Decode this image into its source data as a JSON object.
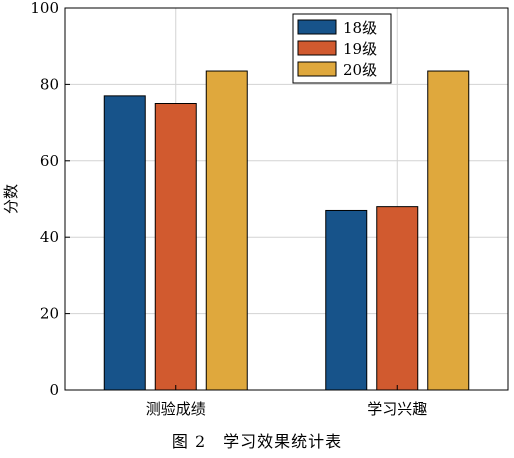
{
  "caption": "图 2　学习效果统计表",
  "chart_data": {
    "type": "bar",
    "categories": [
      "测验成绩",
      "学习兴趣"
    ],
    "series": [
      {
        "name": "18级",
        "values": [
          77,
          47
        ],
        "color": "#17538a"
      },
      {
        "name": "19级",
        "values": [
          75,
          48
        ],
        "color": "#d15a2f"
      },
      {
        "name": "20级",
        "values": [
          83.5,
          83.5
        ],
        "color": "#dfa83d"
      }
    ],
    "xlabel": "",
    "ylabel": "分数",
    "ylim": [
      0,
      100
    ],
    "yticks": [
      0,
      20,
      40,
      60,
      80,
      100
    ],
    "grid": true,
    "legend_position": "top-center"
  }
}
